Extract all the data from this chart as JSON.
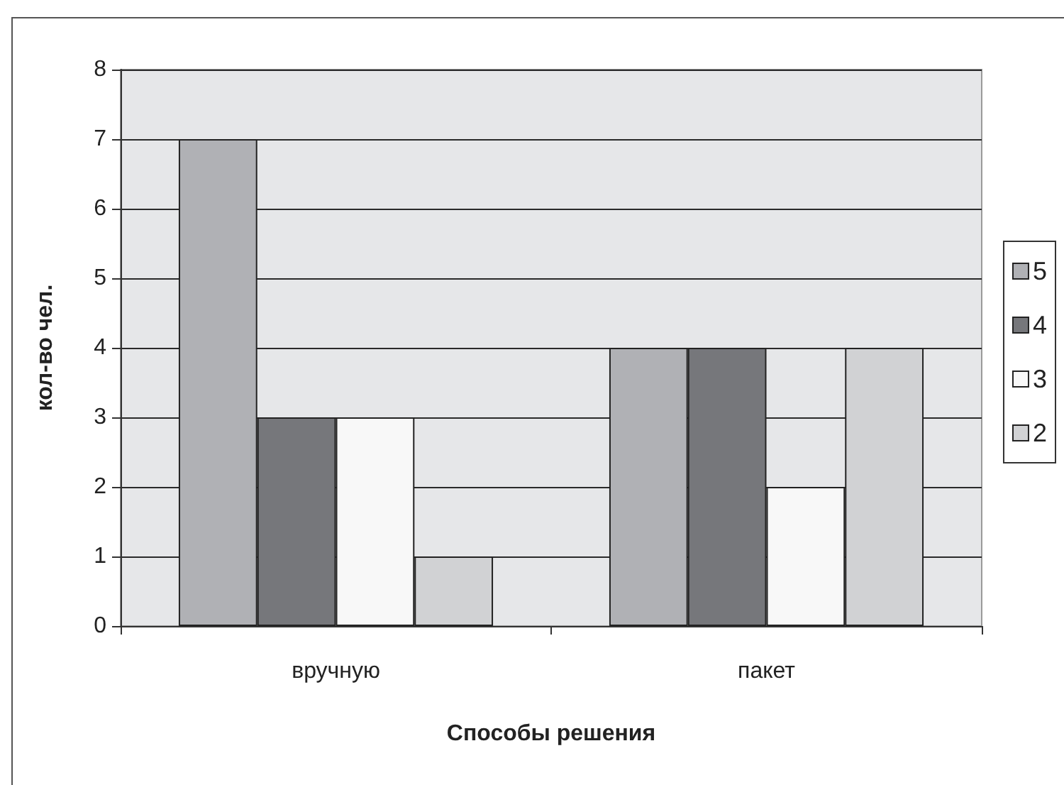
{
  "chart_data": {
    "type": "bar",
    "xlabel": "Способы решения",
    "ylabel": "кол-во чел.",
    "categories": [
      "вручную",
      "пакет"
    ],
    "series": [
      {
        "name": "5",
        "color": "#b0b1b5",
        "values": [
          7,
          4
        ]
      },
      {
        "name": "4",
        "color": "#76777b",
        "values": [
          3,
          4
        ]
      },
      {
        "name": "3",
        "color": "#f8f8f8",
        "values": [
          3,
          2
        ]
      },
      {
        "name": "2",
        "color": "#d1d2d4",
        "values": [
          1,
          4
        ]
      }
    ],
    "ylim": [
      0,
      8
    ],
    "yticks": [
      0,
      1,
      2,
      3,
      4,
      5,
      6,
      7,
      8
    ],
    "grid": "y",
    "legend": "right"
  }
}
